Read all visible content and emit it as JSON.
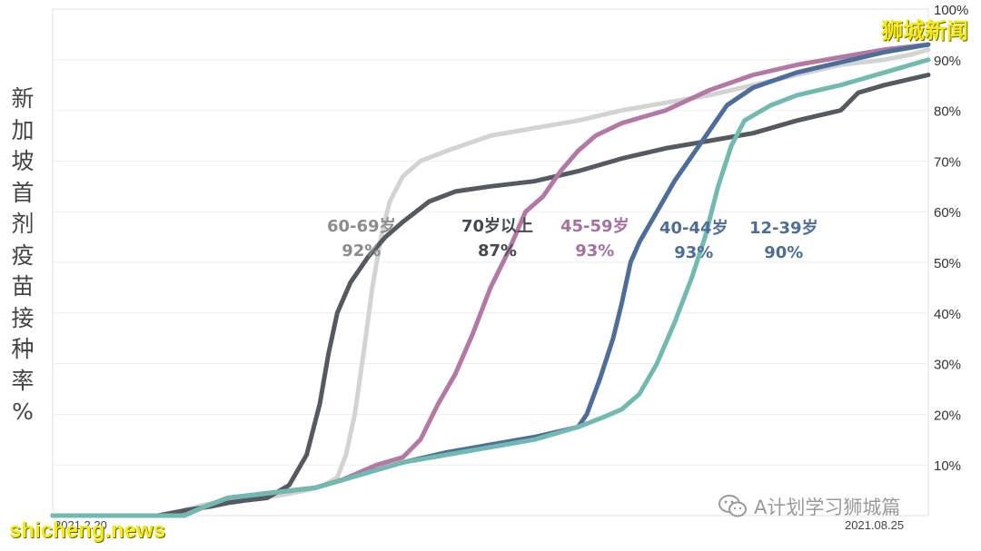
{
  "watermarks": {
    "top_right": "狮城新闻",
    "bottom_left": "shicheng.news",
    "bottom_right": "A计划学习狮城篇"
  },
  "chart_data": {
    "type": "line",
    "title": "",
    "ylabel": "新加坡首剂疫苗接种率%",
    "xlabel": "",
    "x_tick_labels": [
      "2021.2.20",
      "2021.08.25"
    ],
    "y_ticks": [
      "10%",
      "20%",
      "30%",
      "40%",
      "50%",
      "60%",
      "70%",
      "80%",
      "90%",
      "100%"
    ],
    "ylim": [
      0,
      100
    ],
    "xlim": [
      0,
      1
    ],
    "grid": "horizontal",
    "legend": "inline labels",
    "series": [
      {
        "name": "60-69岁",
        "final": "92%",
        "color": "#d3d3d3",
        "points": [
          [
            0,
            0
          ],
          [
            0.13,
            0
          ],
          [
            0.17,
            2
          ],
          [
            0.2,
            3
          ],
          [
            0.23,
            3.5
          ],
          [
            0.26,
            4
          ],
          [
            0.29,
            5
          ],
          [
            0.31,
            6
          ],
          [
            0.325,
            7.5
          ],
          [
            0.335,
            12
          ],
          [
            0.345,
            20
          ],
          [
            0.355,
            32
          ],
          [
            0.365,
            45
          ],
          [
            0.375,
            55
          ],
          [
            0.385,
            62
          ],
          [
            0.4,
            67
          ],
          [
            0.42,
            70
          ],
          [
            0.45,
            72
          ],
          [
            0.5,
            75
          ],
          [
            0.55,
            76.5
          ],
          [
            0.6,
            78
          ],
          [
            0.65,
            80
          ],
          [
            0.7,
            81.5
          ],
          [
            0.75,
            83
          ],
          [
            0.8,
            85
          ],
          [
            0.85,
            87
          ],
          [
            0.9,
            89
          ],
          [
            0.95,
            90
          ],
          [
            0.98,
            91
          ],
          [
            1,
            92
          ]
        ]
      },
      {
        "name": "70岁以上",
        "final": "87%",
        "color": "#555a60",
        "points": [
          [
            0,
            0
          ],
          [
            0.12,
            0
          ],
          [
            0.15,
            1
          ],
          [
            0.18,
            1.8
          ],
          [
            0.2,
            2.5
          ],
          [
            0.22,
            3
          ],
          [
            0.245,
            3.5
          ],
          [
            0.27,
            6
          ],
          [
            0.29,
            12
          ],
          [
            0.305,
            22
          ],
          [
            0.315,
            32
          ],
          [
            0.325,
            40
          ],
          [
            0.34,
            46
          ],
          [
            0.36,
            51
          ],
          [
            0.38,
            55
          ],
          [
            0.4,
            58
          ],
          [
            0.43,
            62
          ],
          [
            0.46,
            64
          ],
          [
            0.5,
            65
          ],
          [
            0.55,
            66
          ],
          [
            0.6,
            68
          ],
          [
            0.65,
            70.5
          ],
          [
            0.7,
            72.5
          ],
          [
            0.75,
            74
          ],
          [
            0.8,
            75.5
          ],
          [
            0.85,
            78
          ],
          [
            0.9,
            80
          ],
          [
            0.92,
            83.5
          ],
          [
            0.95,
            85
          ],
          [
            1,
            87
          ]
        ]
      },
      {
        "name": "45-59岁",
        "final": "93%",
        "color": "#b478a4",
        "points": [
          [
            0,
            0
          ],
          [
            0.15,
            0
          ],
          [
            0.17,
            1.5
          ],
          [
            0.2,
            3.5
          ],
          [
            0.25,
            4.5
          ],
          [
            0.3,
            5.5
          ],
          [
            0.33,
            7
          ],
          [
            0.35,
            8.5
          ],
          [
            0.37,
            10
          ],
          [
            0.4,
            11.5
          ],
          [
            0.42,
            15
          ],
          [
            0.44,
            22
          ],
          [
            0.46,
            28
          ],
          [
            0.48,
            36
          ],
          [
            0.5,
            45
          ],
          [
            0.52,
            52
          ],
          [
            0.54,
            60
          ],
          [
            0.56,
            63
          ],
          [
            0.58,
            68
          ],
          [
            0.6,
            72
          ],
          [
            0.62,
            75
          ],
          [
            0.65,
            77.5
          ],
          [
            0.7,
            80
          ],
          [
            0.75,
            84
          ],
          [
            0.8,
            87
          ],
          [
            0.85,
            89
          ],
          [
            0.9,
            90.5
          ],
          [
            0.95,
            92
          ],
          [
            1,
            93
          ]
        ]
      },
      {
        "name": "40-44岁",
        "final": "93%",
        "color": "#4e6e9a",
        "points": [
          [
            0,
            0
          ],
          [
            0.15,
            0
          ],
          [
            0.17,
            1.5
          ],
          [
            0.2,
            3.5
          ],
          [
            0.25,
            4.5
          ],
          [
            0.3,
            5.5
          ],
          [
            0.35,
            8
          ],
          [
            0.4,
            10.5
          ],
          [
            0.45,
            12.5
          ],
          [
            0.5,
            14
          ],
          [
            0.55,
            15.5
          ],
          [
            0.6,
            17.5
          ],
          [
            0.61,
            20
          ],
          [
            0.625,
            27
          ],
          [
            0.64,
            35
          ],
          [
            0.65,
            42
          ],
          [
            0.66,
            50
          ],
          [
            0.67,
            54
          ],
          [
            0.69,
            60
          ],
          [
            0.71,
            66
          ],
          [
            0.73,
            71
          ],
          [
            0.75,
            76
          ],
          [
            0.77,
            81
          ],
          [
            0.8,
            84.5
          ],
          [
            0.85,
            87.5
          ],
          [
            0.9,
            89.5
          ],
          [
            0.95,
            91.5
          ],
          [
            1,
            93
          ]
        ]
      },
      {
        "name": "12-39岁",
        "final": "90%",
        "color": "#72b9b0",
        "points": [
          [
            0,
            0
          ],
          [
            0.15,
            0
          ],
          [
            0.17,
            1.5
          ],
          [
            0.2,
            3.5
          ],
          [
            0.25,
            4.5
          ],
          [
            0.3,
            5.5
          ],
          [
            0.35,
            8
          ],
          [
            0.4,
            10.5
          ],
          [
            0.45,
            12
          ],
          [
            0.5,
            13.5
          ],
          [
            0.55,
            15
          ],
          [
            0.6,
            17.5
          ],
          [
            0.63,
            19.5
          ],
          [
            0.65,
            21
          ],
          [
            0.67,
            24
          ],
          [
            0.69,
            30
          ],
          [
            0.71,
            38
          ],
          [
            0.73,
            47
          ],
          [
            0.745,
            55
          ],
          [
            0.76,
            65
          ],
          [
            0.775,
            73
          ],
          [
            0.79,
            78
          ],
          [
            0.82,
            81
          ],
          [
            0.85,
            83
          ],
          [
            0.9,
            85
          ],
          [
            0.92,
            86
          ],
          [
            0.95,
            87.5
          ],
          [
            1,
            90
          ]
        ]
      }
    ]
  }
}
